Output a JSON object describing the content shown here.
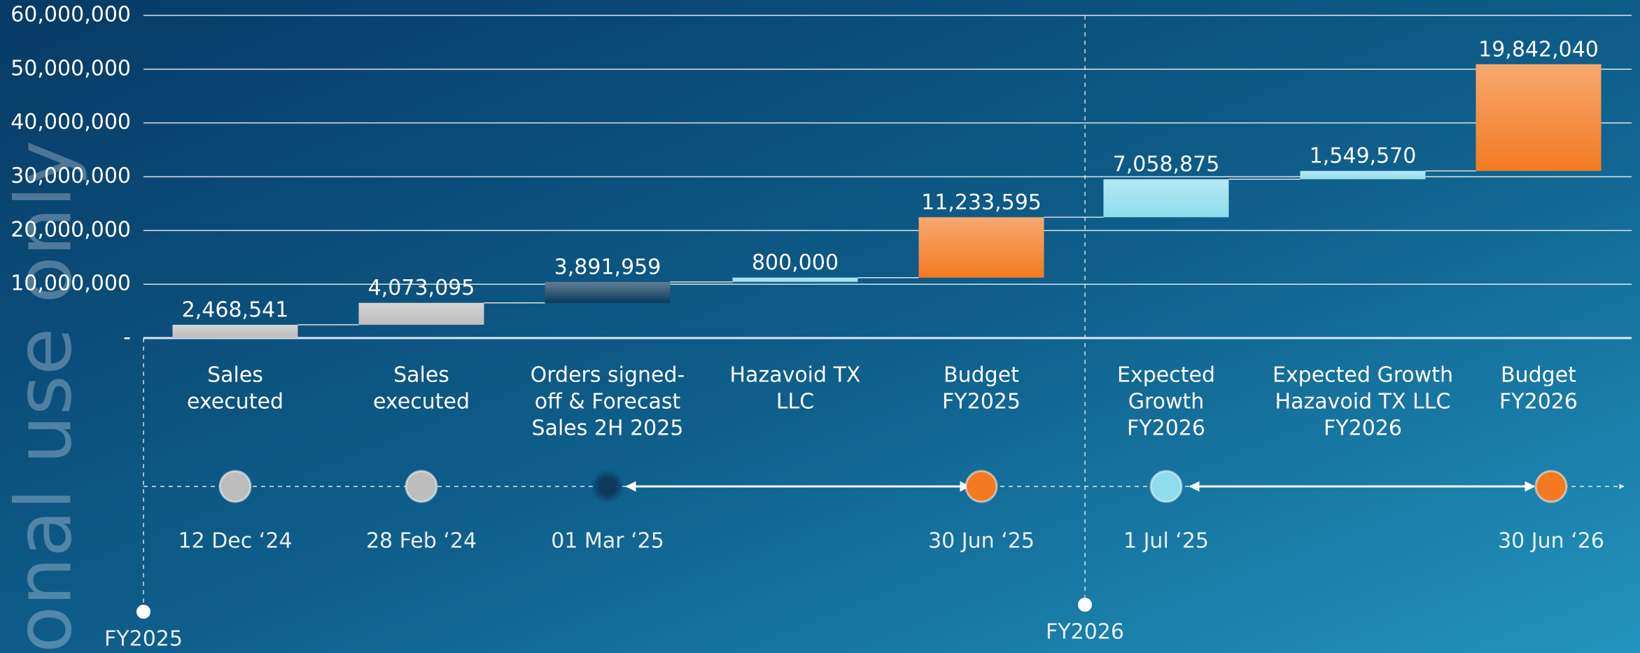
{
  "watermark": "onal use only",
  "chart_data": {
    "type": "waterfall",
    "categories": [
      [
        "Sales",
        "executed"
      ],
      [
        "Sales",
        "executed"
      ],
      [
        "Orders signed-",
        "off & Forecast",
        "Sales 2H 2025"
      ],
      [
        "Hazavoid TX",
        "LLC"
      ],
      [
        "Budget",
        "FY2025"
      ],
      [
        "Expected",
        "Growth",
        "FY2026"
      ],
      [
        "Expected Growth",
        "Hazavoid TX LLC",
        "FY2026"
      ],
      [
        "Budget",
        "FY2026"
      ]
    ],
    "values": [
      2468541,
      4073095,
      3891959,
      800000,
      11233595,
      7058875,
      1549570,
      19842040
    ],
    "value_labels": [
      "2,468,541",
      "4,073,095",
      "3,891,959",
      "800,000",
      "11,233,595",
      "7,058,875",
      "1,549,570",
      "19,842,040"
    ],
    "colors": [
      "#bdbdbd",
      "#bdbdbd",
      "#0b3a5c",
      "#8fdcec",
      "#f37a22",
      "#8fdcec",
      "#8fdcec",
      "#f37a22"
    ],
    "ylim": [
      0,
      60000000
    ],
    "yticks": [
      {
        "value": 0,
        "label": "-"
      },
      {
        "value": 10000000,
        "label": "10,000,000"
      },
      {
        "value": 20000000,
        "label": "20,000,000"
      },
      {
        "value": 30000000,
        "label": "30,000,000"
      },
      {
        "value": 40000000,
        "label": "40,000,000"
      },
      {
        "value": 50000000,
        "label": "50,000,000"
      },
      {
        "value": 60000000,
        "label": "60,000,000"
      }
    ],
    "grid": true,
    "dates": [
      "12 Dec ‘24",
      "28 Feb ‘24",
      "01 Mar ‘25",
      null,
      "30 Jun ‘25",
      "1 Jul ‘25",
      null,
      "30 Jun ‘26"
    ],
    "fiscal_years": [
      "FY2025",
      "FY2026"
    ]
  }
}
